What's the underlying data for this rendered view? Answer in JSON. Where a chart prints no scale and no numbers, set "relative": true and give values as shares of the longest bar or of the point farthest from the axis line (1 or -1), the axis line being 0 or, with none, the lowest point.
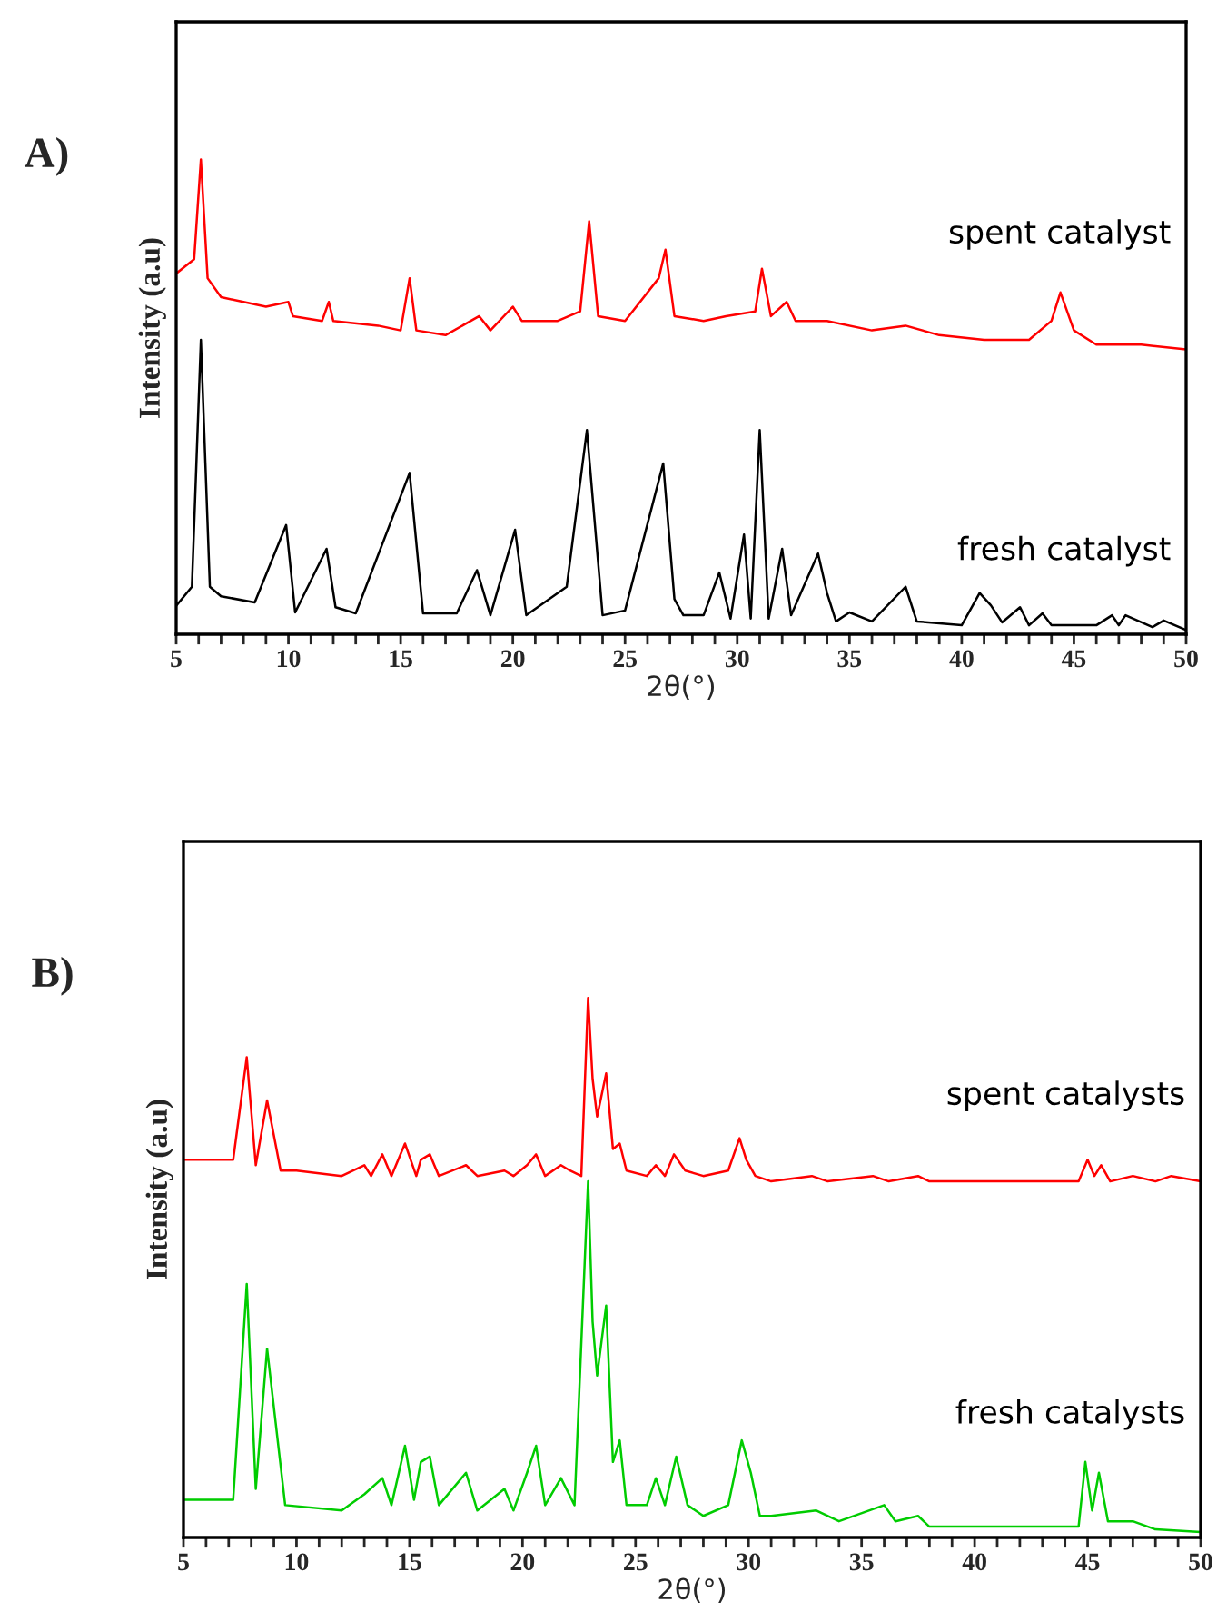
{
  "chart_data": [
    {
      "type": "line",
      "relative": true,
      "xlabel": "2θ(°)",
      "ylabel": "Intensity (a.u)",
      "annotations": [
        "A)"
      ],
      "tick_labels": "x",
      "legend": false,
      "grid": false,
      "xlim": [
        5,
        50
      ],
      "xticks": [
        5,
        {
          "value": 6,
          "label": null
        },
        {
          "value": 7,
          "label": null
        },
        {
          "value": 8,
          "label": null
        },
        {
          "value": 9,
          "label": null
        },
        10,
        {
          "value": 11,
          "label": null
        },
        {
          "value": 12,
          "label": null
        },
        {
          "value": 13,
          "label": null
        },
        {
          "value": 14,
          "label": null
        },
        15,
        {
          "value": 16,
          "label": null
        },
        {
          "value": 17,
          "label": null
        },
        {
          "value": 18,
          "label": null
        },
        {
          "value": 19,
          "label": null
        },
        20,
        {
          "value": 21,
          "label": null
        },
        {
          "value": 22,
          "label": null
        },
        {
          "value": 23,
          "label": null
        },
        {
          "value": 24,
          "label": null
        },
        25,
        {
          "value": 26,
          "label": null
        },
        {
          "value": 27,
          "label": null
        },
        {
          "value": 28,
          "label": null
        },
        {
          "value": 29,
          "label": null
        },
        30,
        {
          "value": 31,
          "label": null
        },
        {
          "value": 32,
          "label": null
        },
        {
          "value": 33,
          "label": null
        },
        {
          "value": 34,
          "label": null
        },
        35,
        {
          "value": 36,
          "label": null
        },
        {
          "value": 37,
          "label": null
        },
        {
          "value": 38,
          "label": null
        },
        {
          "value": 39,
          "label": null
        },
        40,
        {
          "value": 41,
          "label": null
        },
        {
          "value": 42,
          "label": null
        },
        {
          "value": 43,
          "label": null
        },
        {
          "value": 44,
          "label": null
        },
        45,
        {
          "value": 46,
          "label": null
        },
        {
          "value": 47,
          "label": null
        },
        {
          "value": 48,
          "label": null
        },
        {
          "value": 49,
          "label": null
        },
        50
      ],
      "series": [
        {
          "name": "spent catalyst",
          "color": "#ff0000",
          "x": [
            5,
            5.8,
            6.1,
            6.4,
            7,
            8,
            9,
            10,
            10.2,
            11.5,
            11.8,
            12,
            14,
            15,
            15.4,
            15.7,
            17,
            18.5,
            19,
            20,
            20.4,
            22,
            23,
            23.4,
            23.8,
            25,
            26.5,
            26.8,
            27.2,
            28.5,
            29.5,
            30.8,
            31.1,
            31.5,
            32.2,
            32.6,
            34,
            36,
            37.5,
            39,
            41,
            43,
            44,
            44.4,
            45,
            46,
            48,
            50
          ],
          "values": [
            0.76,
            0.79,
            1.0,
            0.75,
            0.71,
            0.7,
            0.69,
            0.7,
            0.67,
            0.66,
            0.7,
            0.66,
            0.65,
            0.64,
            0.75,
            0.64,
            0.63,
            0.67,
            0.64,
            0.69,
            0.66,
            0.66,
            0.68,
            0.87,
            0.67,
            0.66,
            0.75,
            0.81,
            0.67,
            0.66,
            0.67,
            0.68,
            0.77,
            0.67,
            0.7,
            0.66,
            0.66,
            0.64,
            0.65,
            0.63,
            0.62,
            0.62,
            0.66,
            0.72,
            0.64,
            0.61,
            0.61,
            0.6
          ]
        },
        {
          "name": "fresh catalyst",
          "color": "#000000",
          "x": [
            5,
            5.7,
            6.1,
            6.5,
            7,
            8.5,
            9.9,
            10.3,
            11.7,
            12.1,
            13,
            15.4,
            16,
            17.5,
            18.4,
            19,
            20.1,
            20.6,
            22.4,
            23.3,
            24,
            25,
            26.7,
            27.2,
            27.6,
            28.5,
            29.2,
            29.7,
            30.3,
            30.6,
            31.0,
            31.4,
            32.0,
            32.4,
            33.6,
            34.0,
            34.4,
            35,
            36,
            37.5,
            38,
            40,
            40.8,
            41.3,
            41.8,
            42.6,
            43,
            43.6,
            44,
            46,
            46.7,
            47,
            47.3,
            48.5,
            49,
            50
          ],
          "values": [
            0.06,
            0.1,
            0.62,
            0.1,
            0.08,
            0.067,
            0.23,
            0.046,
            0.18,
            0.057,
            0.044,
            0.34,
            0.044,
            0.044,
            0.135,
            0.04,
            0.22,
            0.04,
            0.1,
            0.43,
            0.04,
            0.05,
            0.36,
            0.074,
            0.04,
            0.04,
            0.13,
            0.033,
            0.21,
            0.033,
            0.43,
            0.033,
            0.18,
            0.04,
            0.17,
            0.087,
            0.027,
            0.046,
            0.027,
            0.1,
            0.027,
            0.019,
            0.087,
            0.061,
            0.025,
            0.057,
            0.019,
            0.044,
            0.019,
            0.019,
            0.04,
            0.019,
            0.04,
            0.015,
            0.029,
            0.009
          ]
        }
      ]
    },
    {
      "type": "line",
      "relative": true,
      "xlabel": "2θ(°)",
      "ylabel": "Intensity (a.u)",
      "annotations": [
        "B)"
      ],
      "tick_labels": "x",
      "legend": false,
      "grid": false,
      "xlim": [
        5,
        50
      ],
      "xticks": [
        5,
        {
          "value": 6,
          "label": null
        },
        {
          "value": 7,
          "label": null
        },
        {
          "value": 8,
          "label": null
        },
        {
          "value": 9,
          "label": null
        },
        10,
        {
          "value": 11,
          "label": null
        },
        {
          "value": 12,
          "label": null
        },
        {
          "value": 13,
          "label": null
        },
        {
          "value": 14,
          "label": null
        },
        15,
        {
          "value": 16,
          "label": null
        },
        {
          "value": 17,
          "label": null
        },
        {
          "value": 18,
          "label": null
        },
        {
          "value": 19,
          "label": null
        },
        20,
        {
          "value": 21,
          "label": null
        },
        {
          "value": 22,
          "label": null
        },
        {
          "value": 23,
          "label": null
        },
        {
          "value": 24,
          "label": null
        },
        25,
        {
          "value": 26,
          "label": null
        },
        {
          "value": 27,
          "label": null
        },
        {
          "value": 28,
          "label": null
        },
        {
          "value": 29,
          "label": null
        },
        30,
        {
          "value": 31,
          "label": null
        },
        {
          "value": 32,
          "label": null
        },
        {
          "value": 33,
          "label": null
        },
        {
          "value": 34,
          "label": null
        },
        35,
        {
          "value": 36,
          "label": null
        },
        {
          "value": 37,
          "label": null
        },
        {
          "value": 38,
          "label": null
        },
        {
          "value": 39,
          "label": null
        },
        40,
        {
          "value": 41,
          "label": null
        },
        {
          "value": 42,
          "label": null
        },
        {
          "value": 43,
          "label": null
        },
        {
          "value": 44,
          "label": null
        },
        45,
        {
          "value": 46,
          "label": null
        },
        {
          "value": 47,
          "label": null
        },
        {
          "value": 48,
          "label": null
        },
        {
          "value": 49,
          "label": null
        },
        50
      ],
      "series": [
        {
          "name": "spent catalysts",
          "color": "#ff0000",
          "x": [
            5,
            7.2,
            7.8,
            8.2,
            8.7,
            9.3,
            10,
            12,
            13,
            13.3,
            13.8,
            14.2,
            14.8,
            15.3,
            15.5,
            15.9,
            16.3,
            17.5,
            18,
            19.2,
            19.6,
            20.2,
            20.6,
            21,
            21.7,
            22.1,
            22.6,
            22.9,
            23.1,
            23.3,
            23.7,
            24.0,
            24.3,
            24.6,
            25.5,
            25.9,
            26.3,
            26.7,
            27.2,
            28,
            29.1,
            29.6,
            29.9,
            30.3,
            31,
            32.8,
            33.5,
            35.5,
            36.2,
            37.5,
            38,
            40,
            42,
            44.6,
            45,
            45.3,
            45.6,
            46,
            47,
            48,
            48.7,
            50
          ],
          "values": [
            0.7,
            0.7,
            0.89,
            0.69,
            0.81,
            0.68,
            0.68,
            0.67,
            0.69,
            0.67,
            0.71,
            0.67,
            0.73,
            0.67,
            0.7,
            0.71,
            0.67,
            0.69,
            0.67,
            0.68,
            0.67,
            0.69,
            0.71,
            0.67,
            0.69,
            0.68,
            0.67,
            1.0,
            0.85,
            0.78,
            0.86,
            0.72,
            0.73,
            0.68,
            0.67,
            0.69,
            0.67,
            0.71,
            0.68,
            0.67,
            0.68,
            0.74,
            0.7,
            0.67,
            0.66,
            0.67,
            0.66,
            0.67,
            0.66,
            0.67,
            0.66,
            0.66,
            0.66,
            0.66,
            0.7,
            0.67,
            0.69,
            0.66,
            0.67,
            0.66,
            0.67,
            0.66
          ]
        },
        {
          "name": "fresh catalysts",
          "color": "#00cc00",
          "x": [
            5,
            7.2,
            7.8,
            8.2,
            8.7,
            9.5,
            12,
            13,
            13.8,
            14.2,
            14.8,
            15.2,
            15.5,
            15.9,
            16.3,
            17.5,
            18,
            19.2,
            19.6,
            20.2,
            20.6,
            21,
            21.7,
            22.3,
            22.9,
            23.1,
            23.3,
            23.7,
            24.0,
            24.3,
            24.6,
            25.5,
            25.9,
            26.3,
            26.8,
            27.3,
            28,
            29.1,
            29.7,
            30.1,
            30.5,
            31,
            33,
            34,
            36,
            36.5,
            37.5,
            38,
            40,
            42,
            44.6,
            44.9,
            45.2,
            45.5,
            45.9,
            47,
            48,
            50
          ],
          "values": [
            0.07,
            0.07,
            0.47,
            0.09,
            0.35,
            0.06,
            0.05,
            0.08,
            0.11,
            0.06,
            0.17,
            0.07,
            0.14,
            0.15,
            0.06,
            0.12,
            0.05,
            0.09,
            0.05,
            0.12,
            0.17,
            0.06,
            0.11,
            0.06,
            0.66,
            0.4,
            0.3,
            0.43,
            0.14,
            0.18,
            0.06,
            0.06,
            0.11,
            0.06,
            0.15,
            0.06,
            0.04,
            0.06,
            0.18,
            0.12,
            0.04,
            0.04,
            0.05,
            0.03,
            0.06,
            0.03,
            0.04,
            0.02,
            0.02,
            0.02,
            0.02,
            0.14,
            0.05,
            0.12,
            0.03,
            0.03,
            0.015,
            0.01
          ]
        }
      ]
    }
  ]
}
